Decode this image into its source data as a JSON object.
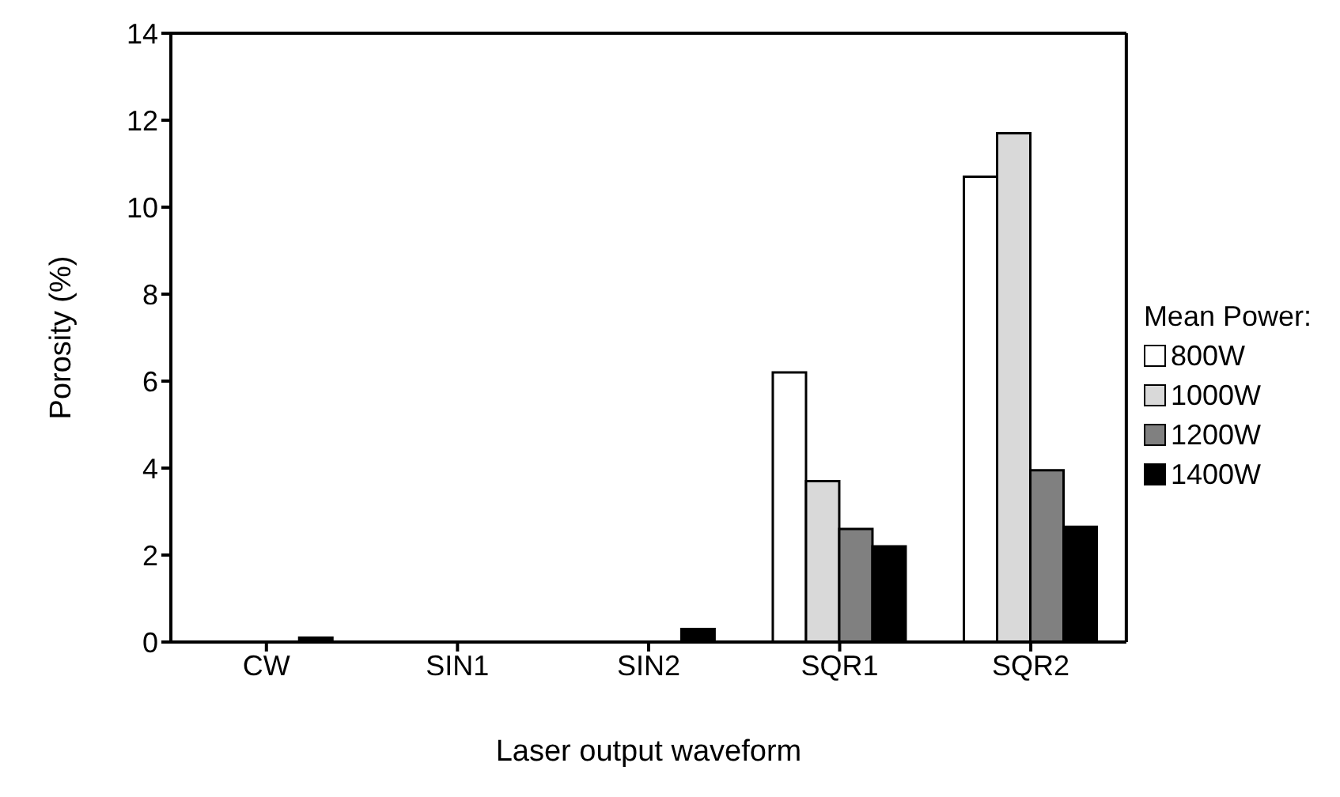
{
  "chart_data": {
    "type": "bar",
    "xlabel": "Laser output waveform",
    "ylabel": "Porosity (%)",
    "legend_title": "Mean Power:",
    "categories": [
      "CW",
      "SIN1",
      "SIN2",
      "SQR1",
      "SQR2"
    ],
    "series": [
      {
        "name": "800W",
        "color": "#ffffff",
        "values": [
          0,
          0,
          0,
          6.2,
          10.7
        ]
      },
      {
        "name": "1000W",
        "color": "#d9d9d9",
        "values": [
          0,
          0,
          0,
          3.7,
          11.7
        ]
      },
      {
        "name": "1200W",
        "color": "#808080",
        "values": [
          0,
          0,
          0,
          2.6,
          3.95
        ]
      },
      {
        "name": "1400W",
        "color": "#000000",
        "values": [
          0.1,
          0,
          0.3,
          2.2,
          2.65
        ]
      }
    ],
    "ylim": [
      0,
      14
    ],
    "yticks": [
      0,
      2,
      4,
      6,
      8,
      10,
      12,
      14
    ],
    "grid": false,
    "legend": "right"
  }
}
